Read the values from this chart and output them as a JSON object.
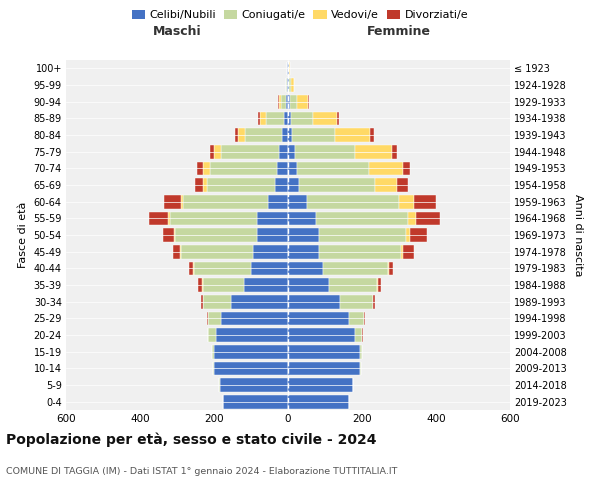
{
  "age_groups": [
    "0-4",
    "5-9",
    "10-14",
    "15-19",
    "20-24",
    "25-29",
    "30-34",
    "35-39",
    "40-44",
    "45-49",
    "50-54",
    "55-59",
    "60-64",
    "65-69",
    "70-74",
    "75-79",
    "80-84",
    "85-89",
    "90-94",
    "95-99",
    "100+"
  ],
  "birth_years": [
    "2019-2023",
    "2014-2018",
    "2009-2013",
    "2004-2008",
    "1999-2003",
    "1994-1998",
    "1989-1993",
    "1984-1988",
    "1979-1983",
    "1974-1978",
    "1969-1973",
    "1964-1968",
    "1959-1963",
    "1954-1958",
    "1949-1953",
    "1944-1948",
    "1939-1943",
    "1934-1938",
    "1929-1933",
    "1924-1928",
    "≤ 1923"
  ],
  "males": {
    "celibi": [
      175,
      185,
      200,
      200,
      195,
      180,
      155,
      120,
      100,
      95,
      85,
      85,
      55,
      35,
      30,
      25,
      15,
      10,
      5,
      2,
      2
    ],
    "coniugati": [
      1,
      2,
      2,
      5,
      20,
      35,
      75,
      110,
      155,
      195,
      220,
      235,
      230,
      185,
      180,
      155,
      100,
      50,
      15,
      3,
      1
    ],
    "vedovi": [
      0,
      0,
      0,
      0,
      0,
      1,
      1,
      2,
      2,
      2,
      2,
      5,
      5,
      10,
      20,
      20,
      20,
      15,
      5,
      1,
      0
    ],
    "divorziati": [
      0,
      0,
      0,
      1,
      1,
      2,
      5,
      12,
      10,
      20,
      30,
      50,
      45,
      20,
      15,
      12,
      8,
      5,
      1,
      0,
      0
    ]
  },
  "females": {
    "nubili": [
      165,
      175,
      195,
      195,
      180,
      165,
      140,
      110,
      95,
      85,
      85,
      75,
      50,
      30,
      25,
      20,
      12,
      8,
      5,
      3,
      2
    ],
    "coniugate": [
      1,
      2,
      3,
      5,
      20,
      40,
      90,
      130,
      175,
      220,
      235,
      250,
      250,
      205,
      195,
      160,
      115,
      60,
      20,
      5,
      2
    ],
    "vedove": [
      0,
      0,
      0,
      0,
      0,
      1,
      1,
      2,
      3,
      5,
      10,
      20,
      40,
      60,
      90,
      100,
      95,
      65,
      30,
      8,
      1
    ],
    "divorziate": [
      0,
      0,
      0,
      1,
      2,
      3,
      5,
      10,
      10,
      30,
      45,
      65,
      60,
      30,
      20,
      15,
      10,
      5,
      2,
      0,
      0
    ]
  },
  "colors": {
    "celibi_nubili": "#4472c4",
    "coniugati_e": "#c5d8a0",
    "vedovi_e": "#ffd966",
    "divorziati_e": "#c0392b"
  },
  "title": "Popolazione per età, sesso e stato civile - 2024",
  "subtitle": "COMUNE DI TAGGIA (IM) - Dati ISTAT 1° gennaio 2024 - Elaborazione TUTTITALIA.IT",
  "xlabel_left": "Maschi",
  "xlabel_right": "Femmine",
  "ylabel_left": "Fasce di età",
  "ylabel_right": "Anni di nascita",
  "xlim": 600,
  "bg_color": "#ffffff",
  "grid_color": "#cccccc"
}
